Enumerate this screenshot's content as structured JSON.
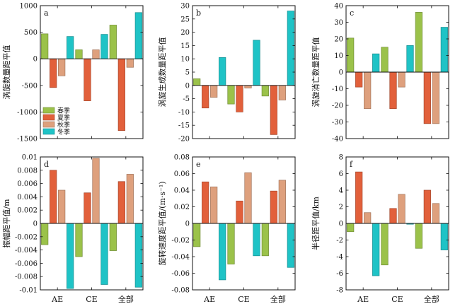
{
  "colors": {
    "spring": "#9bc24a",
    "summer": "#e2603b",
    "autumn": "#dea07d",
    "winter": "#1fc3c6",
    "axis": "#111111"
  },
  "legend": [
    "春季",
    "夏季",
    "秋季",
    "冬季"
  ],
  "chart_data": [
    {
      "type": "bar",
      "panel": "a",
      "ylabel": "涡旋数量距平值",
      "categories": [
        "AE",
        "CE",
        "全部"
      ],
      "ylim": [
        -1500,
        1000
      ],
      "yticks": [
        -1500,
        -1000,
        -500,
        0,
        500,
        1000
      ],
      "ytick_labels": [
        "-1500",
        "-1000",
        "-500",
        "0",
        "500",
        "1000"
      ],
      "show_xlabels": false,
      "show_legend": true,
      "series": [
        {
          "name": "春季",
          "values": [
            470,
            170,
            635
          ]
        },
        {
          "name": "夏季",
          "values": [
            -540,
            -790,
            -1350
          ]
        },
        {
          "name": "秋季",
          "values": [
            -320,
            170,
            -160
          ]
        },
        {
          "name": "冬季",
          "values": [
            420,
            460,
            870
          ]
        }
      ]
    },
    {
      "type": "bar",
      "panel": "b",
      "ylabel": "涡旋生成数量距平值",
      "categories": [
        "AE",
        "CE",
        "全部"
      ],
      "ylim": [
        -20,
        30
      ],
      "yticks": [
        -20,
        -15,
        -10,
        -5,
        0,
        5,
        10,
        15,
        20,
        25,
        30
      ],
      "ytick_labels": [
        "-20",
        "-15",
        "-10",
        "-5",
        "0",
        "5",
        "10",
        "15",
        "20",
        "25",
        "30"
      ],
      "show_xlabels": false,
      "show_legend": false,
      "series": [
        {
          "name": "春季",
          "values": [
            2.5,
            -7,
            -4
          ]
        },
        {
          "name": "夏季",
          "values": [
            -8.5,
            -10,
            -18.5
          ]
        },
        {
          "name": "秋季",
          "values": [
            -4.5,
            -1,
            -5.5
          ]
        },
        {
          "name": "冬季",
          "values": [
            10.5,
            17,
            28
          ]
        }
      ]
    },
    {
      "type": "bar",
      "panel": "c",
      "ylabel": "涡旋消亡数量距平值",
      "categories": [
        "AE",
        "CE",
        "全部"
      ],
      "ylim": [
        -40,
        40
      ],
      "yticks": [
        -40,
        -30,
        -20,
        -10,
        0,
        10,
        20,
        30,
        40
      ],
      "ytick_labels": [
        "-40",
        "-30",
        "-20",
        "-10",
        "0",
        "10",
        "20",
        "30",
        "40"
      ],
      "show_xlabels": false,
      "show_legend": false,
      "series": [
        {
          "name": "春季",
          "values": [
            20.5,
            15,
            36
          ]
        },
        {
          "name": "夏季",
          "values": [
            -9,
            -22,
            -31
          ]
        },
        {
          "name": "秋季",
          "values": [
            -22,
            -9,
            -31
          ]
        },
        {
          "name": "冬季",
          "values": [
            11,
            16,
            27
          ]
        }
      ]
    },
    {
      "type": "bar",
      "panel": "d",
      "ylabel": "振幅距平值/m",
      "categories": [
        "AE",
        "CE",
        "全部"
      ],
      "ylim": [
        -0.01,
        0.01
      ],
      "yticks": [
        -0.01,
        -0.008,
        -0.006,
        -0.004,
        -0.002,
        0,
        0.002,
        0.004,
        0.006,
        0.008,
        0.01
      ],
      "ytick_labels": [
        "-0.01",
        "-0.008",
        "-0.006",
        "-0.004",
        "-0.002",
        "0",
        "0.002",
        "0.004",
        "0.006",
        "0.008",
        "0.01"
      ],
      "show_xlabels": true,
      "show_legend": false,
      "series": [
        {
          "name": "春季",
          "values": [
            -0.0032,
            -0.005,
            -0.0041
          ]
        },
        {
          "name": "夏季",
          "values": [
            0.008,
            0.0046,
            0.0063
          ]
        },
        {
          "name": "秋季",
          "values": [
            0.005,
            0.0098,
            0.0074
          ]
        },
        {
          "name": "冬季",
          "values": [
            -0.0098,
            -0.0092,
            -0.0096
          ]
        }
      ]
    },
    {
      "type": "bar",
      "panel": "e",
      "ylabel": "旋转速度距平值/(m·s⁻¹)",
      "categories": [
        "AE",
        "CE",
        "全部"
      ],
      "ylim": [
        -0.08,
        0.08
      ],
      "yticks": [
        -0.08,
        -0.06,
        -0.04,
        -0.02,
        0,
        0.02,
        0.04,
        0.06,
        0.08
      ],
      "ytick_labels": [
        "-0.08",
        "-0.06",
        "-0.04",
        "-0.02",
        "0",
        "0.02",
        "0.04",
        "0.06",
        "0.08"
      ],
      "show_xlabels": true,
      "show_legend": false,
      "series": [
        {
          "name": "春季",
          "values": [
            -0.028,
            -0.049,
            -0.039
          ]
        },
        {
          "name": "夏季",
          "values": [
            0.05,
            0.027,
            0.039
          ]
        },
        {
          "name": "秋季",
          "values": [
            0.044,
            0.061,
            0.052
          ]
        },
        {
          "name": "冬季",
          "values": [
            -0.068,
            -0.039,
            -0.053
          ]
        }
      ]
    },
    {
      "type": "bar",
      "panel": "f",
      "ylabel": "半径距平值/km",
      "categories": [
        "AE",
        "CE",
        "全部"
      ],
      "ylim": [
        -8,
        8
      ],
      "yticks": [
        -8,
        -6,
        -4,
        -2,
        0,
        2,
        4,
        6,
        8
      ],
      "ytick_labels": [
        "-8",
        "-6",
        "-4",
        "-2",
        "0",
        "2",
        "4",
        "6",
        "8"
      ],
      "show_xlabels": true,
      "show_legend": false,
      "series": [
        {
          "name": "春季",
          "values": [
            -1,
            -5,
            -3
          ]
        },
        {
          "name": "夏季",
          "values": [
            6.2,
            1.8,
            4
          ]
        },
        {
          "name": "秋季",
          "values": [
            1.3,
            3.5,
            2.4
          ]
        },
        {
          "name": "冬季",
          "values": [
            -6.3,
            -0.1,
            -3.2
          ]
        }
      ]
    }
  ]
}
